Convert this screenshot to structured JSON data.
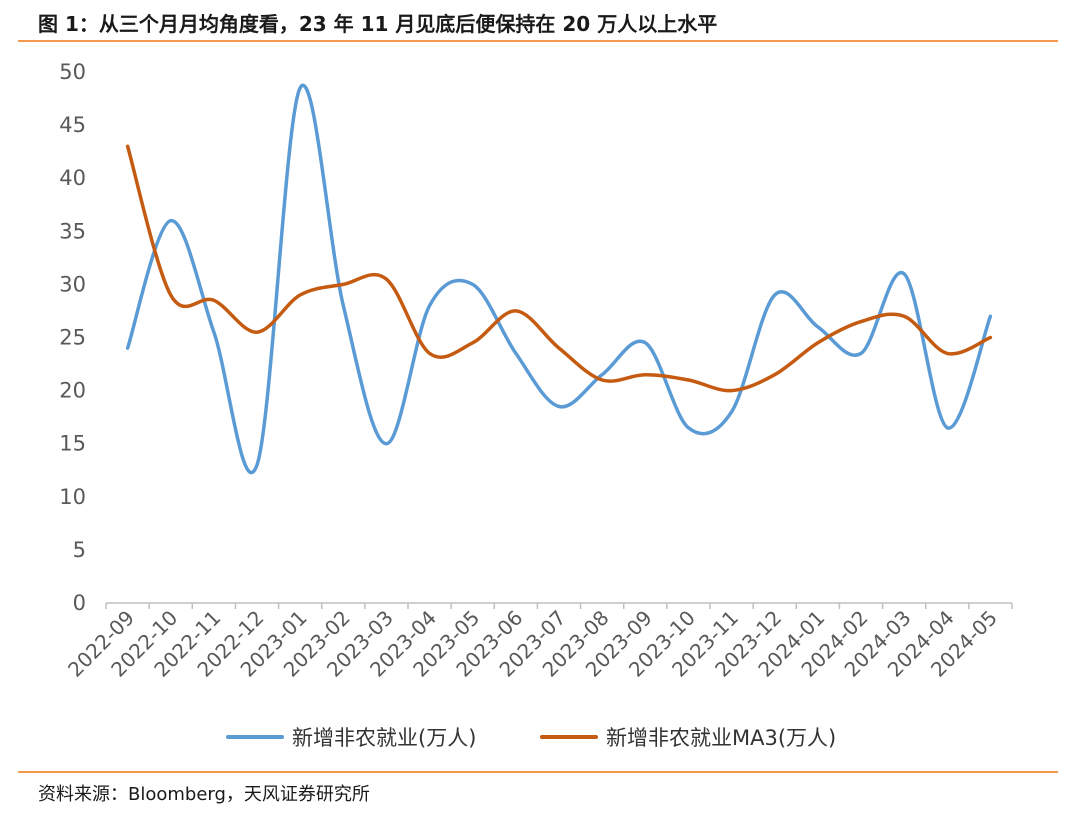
{
  "header": {
    "title": "图 1：从三个月月均角度看，23 年 11 月见底后便保持在 20 万人以上水平"
  },
  "footer": {
    "source": "资料来源：Bloomberg，天风证券研究所"
  },
  "chart_data": {
    "type": "line",
    "categories": [
      "2022-09",
      "2022-10",
      "2022-11",
      "2022-12",
      "2023-01",
      "2023-02",
      "2023-03",
      "2023-04",
      "2023-05",
      "2023-06",
      "2023-07",
      "2023-08",
      "2023-09",
      "2023-10",
      "2023-11",
      "2023-12",
      "2024-01",
      "2024-02",
      "2024-03",
      "2024-04",
      "2024-05"
    ],
    "ylim": [
      0,
      50
    ],
    "yticks": [
      0,
      5,
      10,
      15,
      20,
      25,
      30,
      35,
      40,
      45,
      50
    ],
    "series": [
      {
        "name": "新增非农就业(万人)",
        "color": "#5b9bd5",
        "values": [
          24.0,
          36.0,
          25.5,
          13.0,
          48.5,
          28.0,
          15.0,
          28.0,
          30.0,
          23.5,
          18.5,
          21.5,
          24.5,
          16.5,
          18.0,
          29.0,
          26.0,
          23.5,
          31.0,
          16.5,
          27.0
        ]
      },
      {
        "name": "新增非农就业MA3(万人)",
        "color": "#c55a11",
        "values": [
          43.0,
          29.0,
          28.5,
          25.5,
          29.0,
          30.0,
          30.5,
          23.5,
          24.5,
          27.5,
          24.0,
          21.0,
          21.5,
          21.0,
          20.0,
          21.5,
          24.5,
          26.5,
          27.0,
          23.5,
          25.0
        ]
      }
    ]
  }
}
